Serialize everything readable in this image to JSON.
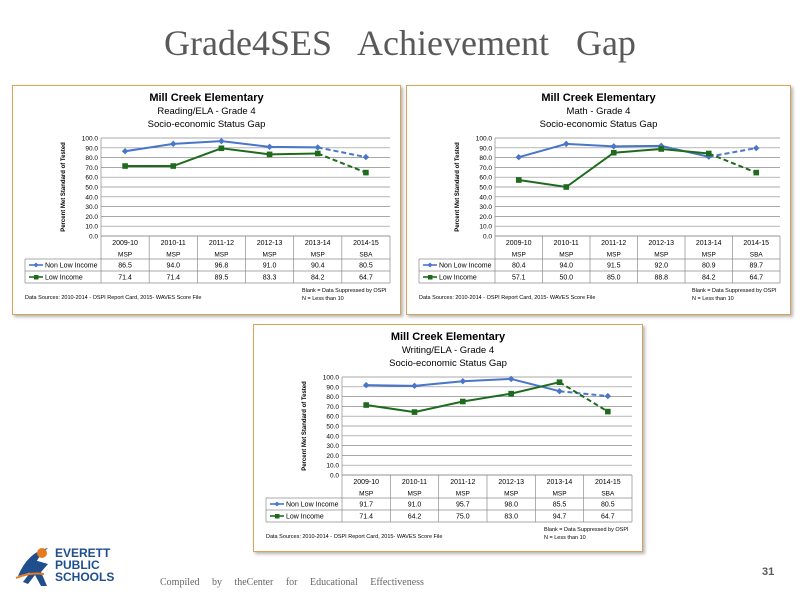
{
  "slide": {
    "title": "Grade4SES Achievement Gap",
    "footer_text": "Compiled by theCenter for Educational Effectiveness",
    "page_number": "31",
    "logo_lines": [
      "EVERETT",
      "PUBLIC",
      "SCHOOLS"
    ]
  },
  "colors": {
    "non_low": "#4a76c9",
    "low": "#1e6b1e",
    "border": "#d9a15a"
  },
  "chart_data": [
    {
      "type": "line",
      "title": "Mill Creek Elementary",
      "subtitle": "Reading/ELA - Grade 4",
      "subtitle2": "Socio-economic Status Gap",
      "ylabel": "Percent Met Standard of Tested",
      "ylim": [
        0,
        100
      ],
      "yticks": [
        "0.0",
        "10.0",
        "20.0",
        "30.0",
        "40.0",
        "50.0",
        "60.0",
        "70.0",
        "80.0",
        "90.0",
        "100.0"
      ],
      "categories": [
        "2009-10",
        "2010-11",
        "2011-12",
        "2012-13",
        "2013-14",
        "2014-15"
      ],
      "tests": [
        "MSP",
        "MSP",
        "MSP",
        "MSP",
        "MSP",
        "SBA"
      ],
      "series": [
        {
          "name": "Non Low Income",
          "values": [
            86.5,
            94.0,
            96.8,
            91.0,
            90.4,
            80.5
          ],
          "labels": [
            "86.5",
            "94.0",
            "96.8",
            "91.0",
            "90.4",
            "80.5"
          ]
        },
        {
          "name": "Low Income",
          "values": [
            71.4,
            71.4,
            89.5,
            83.3,
            84.2,
            64.7
          ],
          "labels": [
            "71.4",
            "71.4",
            "89.5",
            "83.3",
            "84.2",
            "64.7"
          ]
        }
      ],
      "source": "Data Sources: 2010-2014 - OSPI Report Card, 2015- WAVES Score File",
      "note1": "Blank = Data Suppressed by OSPI",
      "note2": "N = Less than 10"
    },
    {
      "type": "line",
      "title": "Mill Creek Elementary",
      "subtitle": "Math - Grade 4",
      "subtitle2": "Socio-economic Status Gap",
      "ylabel": "Percent Met Standard of Tested",
      "ylim": [
        0,
        100
      ],
      "yticks": [
        "0.0",
        "10.0",
        "20.0",
        "30.0",
        "40.0",
        "50.0",
        "60.0",
        "70.0",
        "80.0",
        "90.0",
        "100.0"
      ],
      "categories": [
        "2009-10",
        "2010-11",
        "2011-12",
        "2012-13",
        "2013-14",
        "2014-15"
      ],
      "tests": [
        "MSP",
        "MSP",
        "MSP",
        "MSP",
        "MSP",
        "SBA"
      ],
      "series": [
        {
          "name": "Non Low Income",
          "values": [
            80.4,
            94.0,
            91.5,
            92.0,
            80.9,
            89.7
          ],
          "labels": [
            "80.4",
            "94.0",
            "91.5",
            "92.0",
            "80.9",
            "89.7"
          ]
        },
        {
          "name": "Low Income",
          "values": [
            57.1,
            50.0,
            85.0,
            88.8,
            84.2,
            64.7
          ],
          "labels": [
            "57.1",
            "50.0",
            "85.0",
            "88.8",
            "84.2",
            "64.7"
          ]
        }
      ],
      "source": "Data Sources: 2010-2014 - OSPI Report Card, 2015- WAVES Score File",
      "note1": "Blank = Data Suppressed by OSPI",
      "note2": "N = Less than 10"
    },
    {
      "type": "line",
      "title": "Mill Creek Elementary",
      "subtitle": "Writing/ELA - Grade 4",
      "subtitle2": "Socio-economic Status Gap",
      "ylabel": "Percent Met Standard of Tested",
      "ylim": [
        0,
        100
      ],
      "yticks": [
        "0.0",
        "10.0",
        "20.0",
        "30.0",
        "40.0",
        "50.0",
        "60.0",
        "70.0",
        "80.0",
        "90.0",
        "100.0"
      ],
      "categories": [
        "2009-10",
        "2010-11",
        "2011-12",
        "2012-13",
        "2013-14",
        "2014-15"
      ],
      "tests": [
        "MSP",
        "MSP",
        "MSP",
        "MSP",
        "MSP",
        "SBA"
      ],
      "series": [
        {
          "name": "Non Low Income",
          "values": [
            91.7,
            91.0,
            95.7,
            98.0,
            85.5,
            80.5
          ],
          "labels": [
            "91.7",
            "91.0",
            "95.7",
            "98.0",
            "85.5",
            "80.5"
          ]
        },
        {
          "name": "Low Income",
          "values": [
            71.4,
            64.2,
            75.0,
            83.0,
            94.7,
            64.7
          ],
          "labels": [
            "71.4",
            "64.2",
            "75.0",
            "83.0",
            "94.7",
            "64.7"
          ]
        }
      ],
      "source": "Data Sources: 2010-2014 - OSPI Report Card, 2015- WAVES Score File",
      "note1": "Blank = Data Suppressed by OSPI",
      "note2": "N = Less than 10"
    }
  ]
}
